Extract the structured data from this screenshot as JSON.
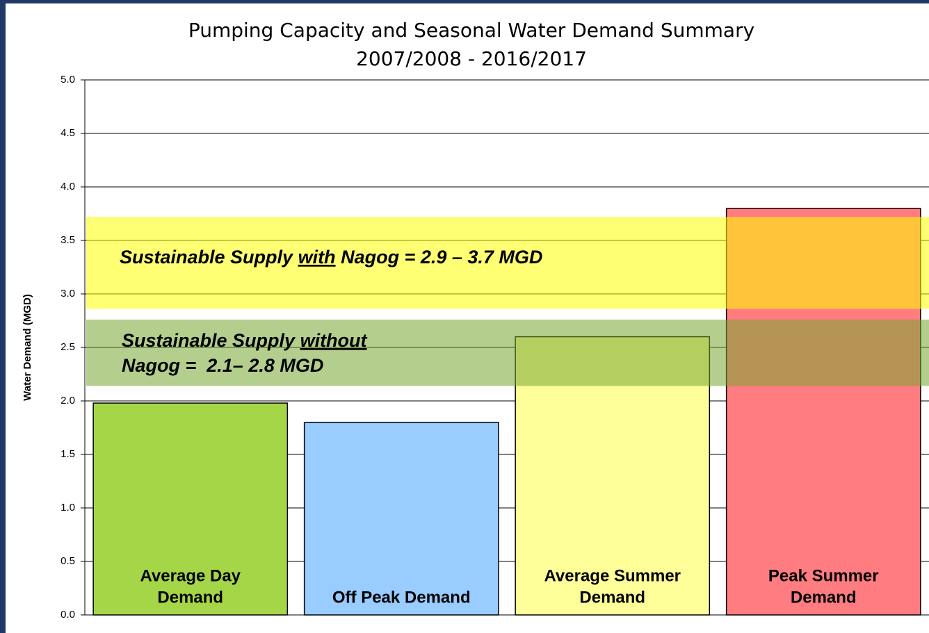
{
  "chart_data": {
    "type": "bar",
    "title": [
      "Pumping Capacity and Seasonal Water Demand Summary",
      "2007/2008 - 2016/2017"
    ],
    "ylabel": "Water Demand (MGD)",
    "categories": [
      [
        "Average Day",
        "Demand"
      ],
      [
        "Off Peak Demand"
      ],
      [
        "Average Summer",
        "Demand"
      ],
      [
        "Peak Summer",
        "Demand"
      ]
    ],
    "values": [
      1.98,
      1.8,
      2.6,
      3.8
    ],
    "colors": [
      "#a4d648",
      "#99ccff",
      "#ffff99",
      "#ff7c80"
    ],
    "ylim": [
      0,
      5
    ],
    "yticks": [
      {
        "value": 0,
        "label": "0.0"
      },
      0.5,
      {
        "value": 1,
        "label": "1.0"
      },
      1.5,
      {
        "value": 2,
        "label": "2.0"
      },
      2.5,
      {
        "value": 3,
        "label": "3.0"
      },
      3.5,
      {
        "value": 4,
        "label": "4.0"
      },
      4.5,
      {
        "value": 5,
        "label": "5.0"
      }
    ],
    "grid": true,
    "bands": [
      {
        "range": [
          2.86,
          3.72
        ],
        "color": "rgba(255,255,0,0.55)",
        "text": [
          [
            "Sustainable Supply ",
            "with",
            " Nagog = 2.9 – 3.7 MGD"
          ]
        ]
      },
      {
        "range": [
          2.14,
          2.76
        ],
        "color": "rgba(118,165,48,0.55)",
        "text": [
          [
            "Sustainable Supply ",
            "without"
          ],
          [
            "Nagog =  2.1– 2.8 MGD"
          ]
        ]
      }
    ]
  }
}
